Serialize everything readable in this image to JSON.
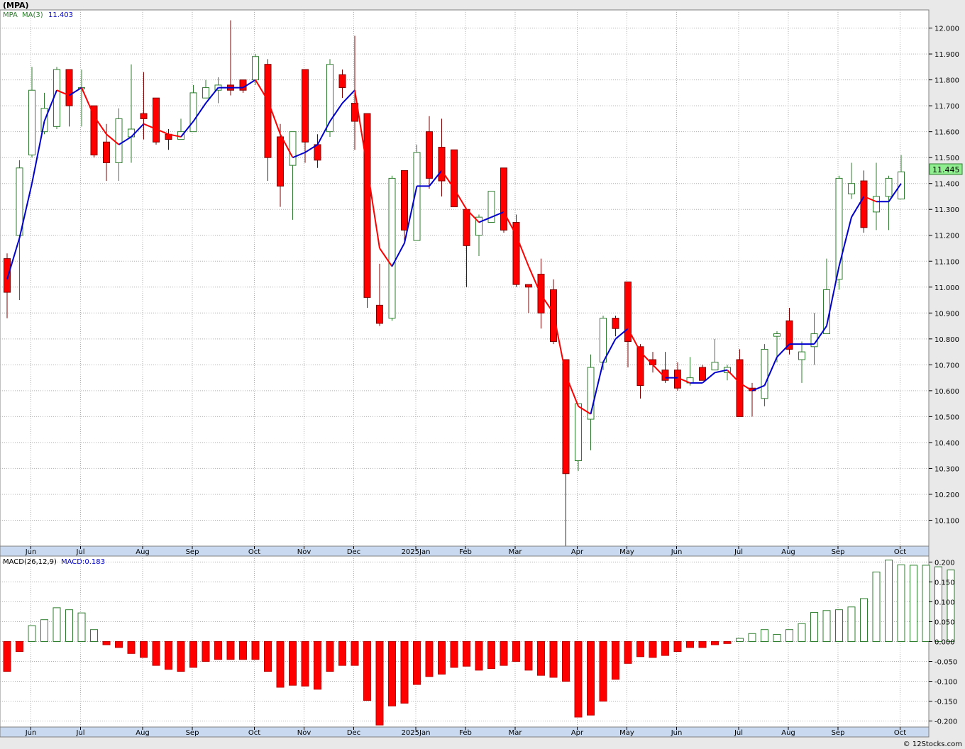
{
  "header": {
    "symbol": "(MPA)"
  },
  "footer": {
    "credit": "© 12Stocks.com"
  },
  "colors": {
    "up": "#2f7d2f",
    "down": "#ff0000",
    "ma_up": "#0000cc",
    "ma_down": "#ff0000",
    "grid": "#b0b0b0",
    "axis_band": "#c9daf0",
    "last_price_bg": "#90ee90"
  },
  "chart_data": [
    {
      "type": "candlestick",
      "legend": {
        "symbol": "MPA",
        "ma_label": "MA(3)",
        "ma_value": "11.403"
      },
      "last_price_label": "11.445",
      "ylim": [
        10.0,
        12.07
      ],
      "y_ticks": [
        "12.000",
        "11.900",
        "11.800",
        "11.700",
        "11.600",
        "11.500",
        "11.400",
        "11.300",
        "11.200",
        "11.100",
        "11.000",
        "10.900",
        "10.800",
        "10.700",
        "10.600",
        "10.500",
        "10.400",
        "10.300",
        "10.200",
        "10.100"
      ],
      "x_labels": [
        "Jun",
        "Jul",
        "Aug",
        "Sep",
        "Oct",
        "Nov",
        "Dec",
        "2025Jan",
        "Feb",
        "Mar",
        "Apr",
        "May",
        "Jun",
        "Jul",
        "Aug",
        "Sep",
        "Oct"
      ],
      "x_label_weeks": [
        1,
        5,
        10,
        14,
        19,
        23,
        27,
        32,
        36,
        40,
        45,
        49,
        53,
        58,
        62,
        66,
        71
      ],
      "ohlc": [
        [
          11.11,
          11.13,
          10.88,
          10.98
        ],
        [
          11.2,
          11.49,
          10.95,
          11.46
        ],
        [
          11.51,
          11.85,
          11.5,
          11.76
        ],
        [
          11.6,
          11.75,
          11.59,
          11.69
        ],
        [
          11.62,
          11.85,
          11.61,
          11.84
        ],
        [
          11.84,
          11.84,
          11.62,
          11.7
        ],
        [
          11.77,
          11.84,
          11.62,
          11.77
        ],
        [
          11.7,
          11.7,
          11.5,
          11.51
        ],
        [
          11.56,
          11.63,
          11.41,
          11.48
        ],
        [
          11.48,
          11.69,
          11.41,
          11.65
        ],
        [
          11.58,
          11.86,
          11.48,
          11.61
        ],
        [
          11.67,
          11.83,
          11.57,
          11.65
        ],
        [
          11.73,
          11.73,
          11.55,
          11.56
        ],
        [
          11.59,
          11.61,
          11.53,
          11.57
        ],
        [
          11.57,
          11.65,
          11.57,
          11.6
        ],
        [
          11.6,
          11.78,
          11.6,
          11.75
        ],
        [
          11.73,
          11.8,
          11.73,
          11.77
        ],
        [
          11.76,
          11.81,
          11.71,
          11.78
        ],
        [
          11.78,
          12.03,
          11.74,
          11.76
        ],
        [
          11.8,
          11.8,
          11.75,
          11.76
        ],
        [
          11.8,
          11.9,
          11.78,
          11.89
        ],
        [
          11.86,
          11.88,
          11.41,
          11.5
        ],
        [
          11.58,
          11.63,
          11.31,
          11.39
        ],
        [
          11.47,
          11.6,
          11.26,
          11.6
        ],
        [
          11.84,
          11.84,
          11.48,
          11.56
        ],
        [
          11.55,
          11.59,
          11.46,
          11.49
        ],
        [
          11.6,
          11.88,
          11.58,
          11.86
        ],
        [
          11.82,
          11.84,
          11.73,
          11.77
        ],
        [
          11.71,
          11.97,
          11.53,
          11.64
        ],
        [
          11.67,
          11.67,
          10.92,
          10.96
        ],
        [
          10.93,
          11.09,
          10.85,
          10.86
        ],
        [
          10.88,
          11.43,
          10.87,
          11.42
        ],
        [
          11.45,
          11.45,
          11.18,
          11.22
        ],
        [
          11.18,
          11.55,
          11.18,
          11.52
        ],
        [
          11.6,
          11.66,
          11.38,
          11.42
        ],
        [
          11.54,
          11.65,
          11.35,
          11.41
        ],
        [
          11.53,
          11.53,
          11.31,
          11.31
        ],
        [
          11.3,
          11.3,
          11.0,
          11.16
        ],
        [
          11.2,
          11.28,
          11.12,
          11.27
        ],
        [
          11.25,
          11.37,
          11.25,
          11.37
        ],
        [
          11.46,
          11.46,
          11.21,
          11.22
        ],
        [
          11.25,
          11.28,
          11.0,
          11.01
        ],
        [
          11.01,
          11.01,
          10.9,
          11.0
        ],
        [
          11.05,
          11.11,
          10.84,
          10.9
        ],
        [
          10.99,
          11.03,
          10.78,
          10.79
        ],
        [
          10.72,
          10.72,
          10.0,
          10.28
        ],
        [
          10.33,
          10.55,
          10.29,
          10.55
        ],
        [
          10.49,
          10.74,
          10.37,
          10.69
        ],
        [
          10.71,
          10.89,
          10.68,
          10.88
        ],
        [
          10.88,
          10.89,
          10.81,
          10.84
        ],
        [
          11.02,
          11.02,
          10.69,
          10.79
        ],
        [
          10.77,
          10.78,
          10.57,
          10.62
        ],
        [
          10.72,
          10.75,
          10.67,
          10.7
        ],
        [
          10.68,
          10.75,
          10.63,
          10.64
        ],
        [
          10.68,
          10.71,
          10.6,
          10.61
        ],
        [
          10.63,
          10.73,
          10.62,
          10.65
        ],
        [
          10.69,
          10.7,
          10.64,
          10.64
        ],
        [
          10.68,
          10.8,
          10.68,
          10.71
        ],
        [
          10.67,
          10.7,
          10.64,
          10.69
        ],
        [
          10.72,
          10.76,
          10.5,
          10.5
        ],
        [
          10.61,
          10.63,
          10.5,
          10.6
        ],
        [
          10.57,
          10.78,
          10.54,
          10.76
        ],
        [
          10.81,
          10.83,
          10.71,
          10.82
        ],
        [
          10.87,
          10.92,
          10.74,
          10.76
        ],
        [
          10.72,
          10.79,
          10.63,
          10.75
        ],
        [
          10.77,
          10.9,
          10.7,
          10.82
        ],
        [
          10.82,
          11.11,
          10.82,
          10.99
        ],
        [
          11.03,
          11.43,
          10.99,
          11.42
        ],
        [
          11.36,
          11.48,
          11.34,
          11.4
        ],
        [
          11.41,
          11.45,
          11.21,
          11.23
        ],
        [
          11.29,
          11.48,
          11.22,
          11.35
        ],
        [
          11.35,
          11.43,
          11.22,
          11.42
        ],
        [
          11.34,
          11.51,
          11.34,
          11.445
        ]
      ],
      "ma3": [
        11.03,
        11.19,
        11.4,
        11.64,
        11.76,
        11.74,
        11.77,
        11.66,
        11.59,
        11.55,
        11.58,
        11.63,
        11.61,
        11.59,
        11.58,
        11.64,
        11.71,
        11.77,
        11.77,
        11.77,
        11.8,
        11.72,
        11.59,
        11.5,
        11.52,
        11.55,
        11.64,
        11.71,
        11.76,
        11.46,
        11.15,
        11.08,
        11.17,
        11.39,
        11.39,
        11.45,
        11.38,
        11.3,
        11.25,
        11.27,
        11.29,
        11.2,
        11.08,
        10.97,
        10.9,
        10.66,
        10.54,
        10.51,
        10.71,
        10.8,
        10.84,
        10.75,
        10.7,
        10.65,
        10.65,
        10.63,
        10.63,
        10.67,
        10.68,
        10.63,
        10.6,
        10.62,
        10.73,
        10.78,
        10.78,
        10.78,
        10.85,
        11.08,
        11.27,
        11.35,
        11.33,
        11.33,
        11.4
      ]
    },
    {
      "type": "bar",
      "legend": {
        "label": "MACD(26,12,9)",
        "value_label": "MACD:0.183"
      },
      "ylim": [
        -0.215,
        0.215
      ],
      "y_ticks": [
        "0.200",
        "0.150",
        "0.100",
        "0.050",
        "0.000",
        "-0.050",
        "-0.100",
        "-0.150",
        "-0.200"
      ],
      "x_labels": [
        "Jun",
        "Jul",
        "Aug",
        "Sep",
        "Oct",
        "Nov",
        "Dec",
        "2025Jan",
        "Feb",
        "Mar",
        "Apr",
        "May",
        "Jun",
        "Jul",
        "Aug",
        "Sep",
        "Oct"
      ],
      "values": [
        -0.075,
        -0.025,
        0.04,
        0.055,
        0.085,
        0.08,
        0.072,
        0.03,
        -0.008,
        -0.015,
        -0.03,
        -0.04,
        -0.06,
        -0.07,
        -0.075,
        -0.065,
        -0.05,
        -0.045,
        -0.045,
        -0.045,
        -0.045,
        -0.075,
        -0.115,
        -0.11,
        -0.112,
        -0.12,
        -0.075,
        -0.06,
        -0.06,
        -0.148,
        -0.21,
        -0.162,
        -0.155,
        -0.108,
        -0.088,
        -0.082,
        -0.065,
        -0.062,
        -0.072,
        -0.068,
        -0.06,
        -0.05,
        -0.072,
        -0.085,
        -0.09,
        -0.1,
        -0.19,
        -0.185,
        -0.15,
        -0.095,
        -0.055,
        -0.038,
        -0.04,
        -0.035,
        -0.025,
        -0.015,
        -0.015,
        -0.008,
        -0.005,
        0.008,
        0.02,
        0.03,
        0.018,
        0.03,
        0.045,
        0.073,
        0.078,
        0.08,
        0.087,
        0.108,
        0.175,
        0.205,
        0.193,
        0.192,
        0.192,
        0.188,
        0.18
      ]
    }
  ]
}
